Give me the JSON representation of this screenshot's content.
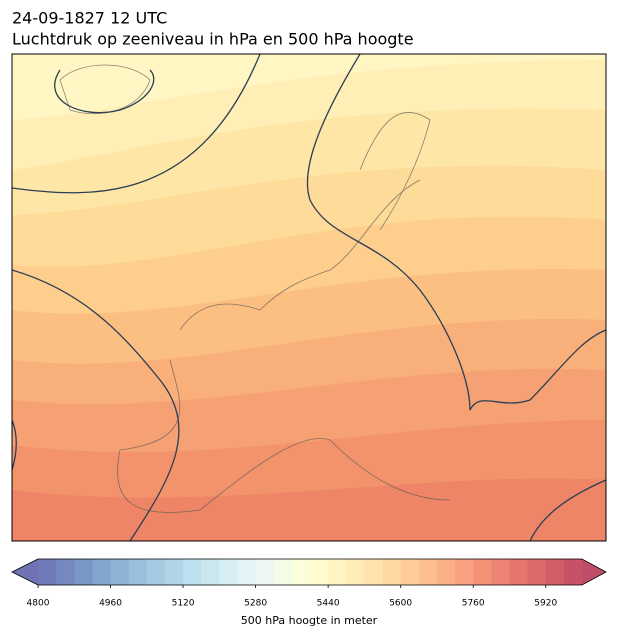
{
  "title": "24-09-1827 12 UTC",
  "subtitle": "Luchtdruk op zeeniveau in hPa en 500 hPa hoogte",
  "colorbar": {
    "label": "500 hPa hoogte in meter",
    "lim": [
      4800,
      6000
    ],
    "ticks": [
      4800,
      4960,
      5120,
      5280,
      5440,
      5600,
      5760,
      5920
    ]
  }
}
